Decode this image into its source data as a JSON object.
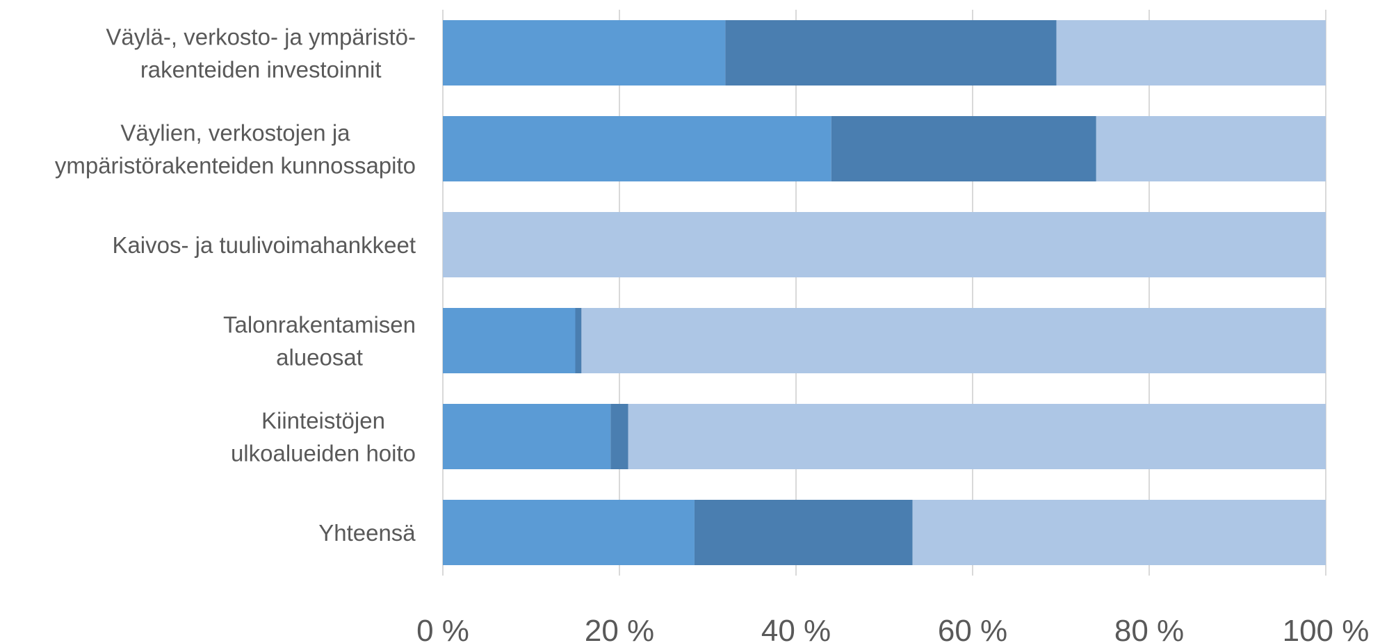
{
  "chart_data": {
    "type": "bar",
    "orientation": "horizontal",
    "stacked": "percent",
    "title": "",
    "xlabel": "",
    "ylabel": "",
    "xlim": [
      0,
      100
    ],
    "grid": true,
    "legend": "none",
    "categories": [
      [
        "Väylä-, verkosto- ja ympäristö-",
        "rakenteiden investoinnit"
      ],
      [
        "Väylien, verkostojen ja",
        "ympäristörakenteiden kunnossapito"
      ],
      [
        "Kaivos- ja tuulivoimahankkeet"
      ],
      [
        "Talonrakentamisen",
        "alueosat"
      ],
      [
        "Kiinteistöjen",
        "ulkoalueiden hoito"
      ],
      [
        "Yhteensä"
      ]
    ],
    "series": [
      {
        "color": "#5b9bd5",
        "values": [
          32,
          44,
          0,
          15,
          19,
          28.5
        ]
      },
      {
        "color": "#4a7eb0",
        "values": [
          37.5,
          30,
          0,
          0.7,
          2,
          24.7
        ]
      },
      {
        "color": "#adc6e5",
        "values": [
          30.5,
          26,
          100,
          84.3,
          79,
          46.8
        ]
      }
    ],
    "tick_labels": [
      "0 %",
      "20 %",
      "40 %",
      "60 %",
      "80 %",
      "100 %"
    ]
  }
}
